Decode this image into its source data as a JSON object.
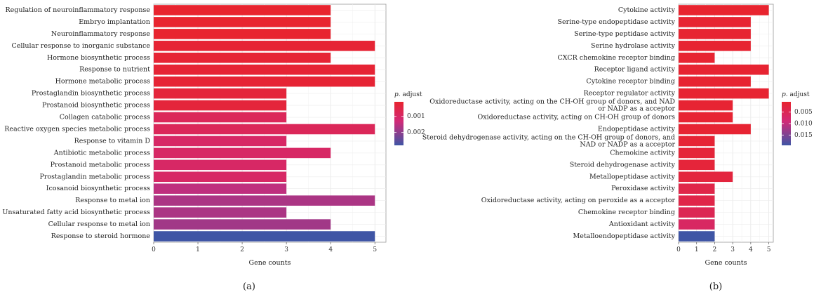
{
  "chart_data": [
    {
      "type": "bar",
      "orientation": "horizontal",
      "panel_label": "(a)",
      "xlabel": "Gene counts",
      "ylabel": "",
      "xlim": [
        0,
        5.25
      ],
      "xticks": [
        0,
        1,
        2,
        3,
        4,
        5
      ],
      "grid": true,
      "categories": [
        "Regulation of neuroinflammatory response",
        "Embryo implantation",
        "Neuroinflammatory response",
        "Cellular response to inorganic substance",
        "Hormone biosynthetic process",
        "Response to nutrient",
        "Hormone metabolic process",
        "Prostaglandin biosynthetic process",
        "Prostanoid biosynthetic process",
        "Collagen catabolic process",
        "Reactive oxygen species metabolic process",
        "Response to vitamin D",
        "Antibiotic metabolic process",
        "Prostanoid metabolic process",
        "Prostaglandin metabolic process",
        "Icosanoid biosynthetic process",
        "Response to metal ion",
        "Unsaturated fatty acid biosynthetic process",
        "Cellular response to metal ion",
        "Response to steroid hormone"
      ],
      "values": [
        4,
        4,
        4,
        5,
        4,
        5,
        5,
        3,
        3,
        3,
        5,
        3,
        4,
        3,
        3,
        3,
        5,
        3,
        4,
        5
      ],
      "p_adjust": [
        0.0001,
        0.0001,
        0.0001,
        0.0002,
        0.0002,
        0.0002,
        0.0002,
        0.0003,
        0.0003,
        0.0008,
        0.0008,
        0.001,
        0.001,
        0.001,
        0.001,
        0.0015,
        0.0017,
        0.0017,
        0.0018,
        0.0028
      ],
      "legend": {
        "title_italic": "p.",
        "title_rest": " adjust",
        "placement": "right",
        "min": 0.0001,
        "max": 0.0028,
        "ticks": [
          0.001,
          0.002
        ],
        "tick_labels": [
          "0.001",
          "0.002"
        ],
        "color_low": "#E8242F",
        "color_mid": "#D12A78",
        "color_high": "#3F55A5"
      }
    },
    {
      "type": "bar",
      "orientation": "horizontal",
      "panel_label": "(b)",
      "xlabel": "Gene counts",
      "ylabel": "",
      "xlim": [
        0,
        5.25
      ],
      "xticks": [
        0,
        1,
        2,
        3,
        4,
        5
      ],
      "grid": true,
      "categories": [
        "Cytokine activity",
        "Serine-type endopeptidase activity",
        "Serine-type peptidase activity",
        "Serine hydrolase activity",
        "CXCR chemokine receptor binding",
        "Receptor ligand activity",
        "Cytokine receptor binding",
        "Receptor regulator activity",
        "Oxidoreductase activity, acting on the CH-OH group of donors, and NAD|or NADP as a acceptor",
        "Oxidoreductase activity, acting on CH-OH group of donors",
        "Endopeptidase activity",
        "Steroid dehydrogenase activity, acting on the CH-OH group of donors, and|NAD or NADP as a acceptor",
        "Chemokine activity",
        "Steroid dehydrogenase activity",
        "Metallopeptidase activity",
        "Peroxidase activity",
        "Oxidoreductase activity, acting on peroxide as a acceptor",
        "Chemokine receptor binding",
        "Antioxidant activity",
        "Metalloendopeptidase activity"
      ],
      "values": [
        5,
        4,
        4,
        4,
        2,
        5,
        4,
        5,
        3,
        3,
        4,
        2,
        2,
        2,
        3,
        2,
        2,
        2,
        2,
        2
      ],
      "p_adjust": [
        0.0005,
        0.0008,
        0.0008,
        0.0008,
        0.0008,
        0.0008,
        0.0008,
        0.0008,
        0.001,
        0.001,
        0.001,
        0.0012,
        0.0018,
        0.0018,
        0.0022,
        0.0035,
        0.0035,
        0.0048,
        0.0065,
        0.0195
      ],
      "legend": {
        "title_italic": "p.",
        "title_rest": " adjust",
        "placement": "right",
        "min": 0.0005,
        "max": 0.0195,
        "ticks": [
          0.005,
          0.01,
          0.015
        ],
        "tick_labels": [
          "0.005",
          "0.010",
          "0.015"
        ],
        "color_low": "#E8242F",
        "color_mid": "#D12A78",
        "color_high": "#3F55A5"
      }
    }
  ]
}
